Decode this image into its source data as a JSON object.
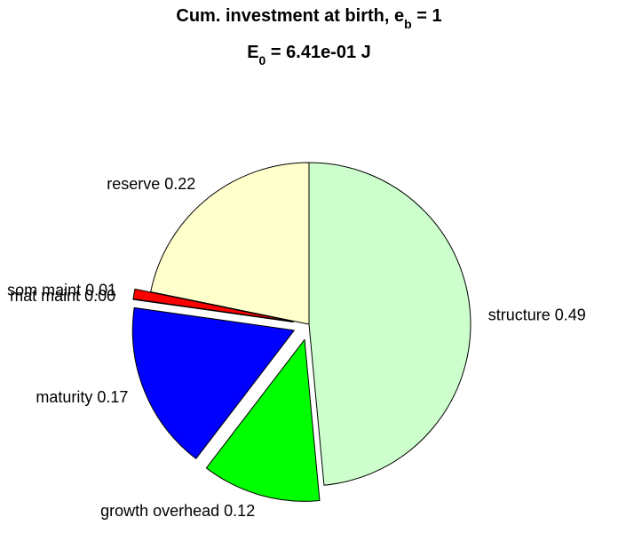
{
  "title": {
    "line1_prefix": "Cum. investment at birth, e",
    "line1_sub": "b",
    "line1_suffix": " = 1",
    "line2_prefix": "E",
    "line2_sub": "0",
    "line2_suffix": " = 6.41e-01 J"
  },
  "chart_data": {
    "type": "pie",
    "title": "Cum. investment at birth, e_b = 1",
    "subtitle": "E_0 = 6.41e-01 J",
    "slices": [
      {
        "label": "structure",
        "value": 0.49,
        "value_text": "0.49",
        "color": "#ccffcc",
        "exploded": false
      },
      {
        "label": "growth overhead",
        "value": 0.12,
        "value_text": "0.12",
        "color": "#00ff00",
        "exploded": true
      },
      {
        "label": "maturity",
        "value": 0.17,
        "value_text": "0.17",
        "color": "#0000ff",
        "exploded": true
      },
      {
        "label": "mat maint",
        "value": 0.0,
        "value_text": "0.00",
        "color": "#0000ff",
        "exploded": true
      },
      {
        "label": "som maint",
        "value": 0.01,
        "value_text": "0.01",
        "color": "#ff0000",
        "exploded": true
      },
      {
        "label": "reserve",
        "value": 0.22,
        "value_text": "0.22",
        "color": "#ffffcc",
        "exploded": false
      }
    ],
    "start_angle": "top",
    "direction": "clockwise",
    "legend": "none"
  }
}
